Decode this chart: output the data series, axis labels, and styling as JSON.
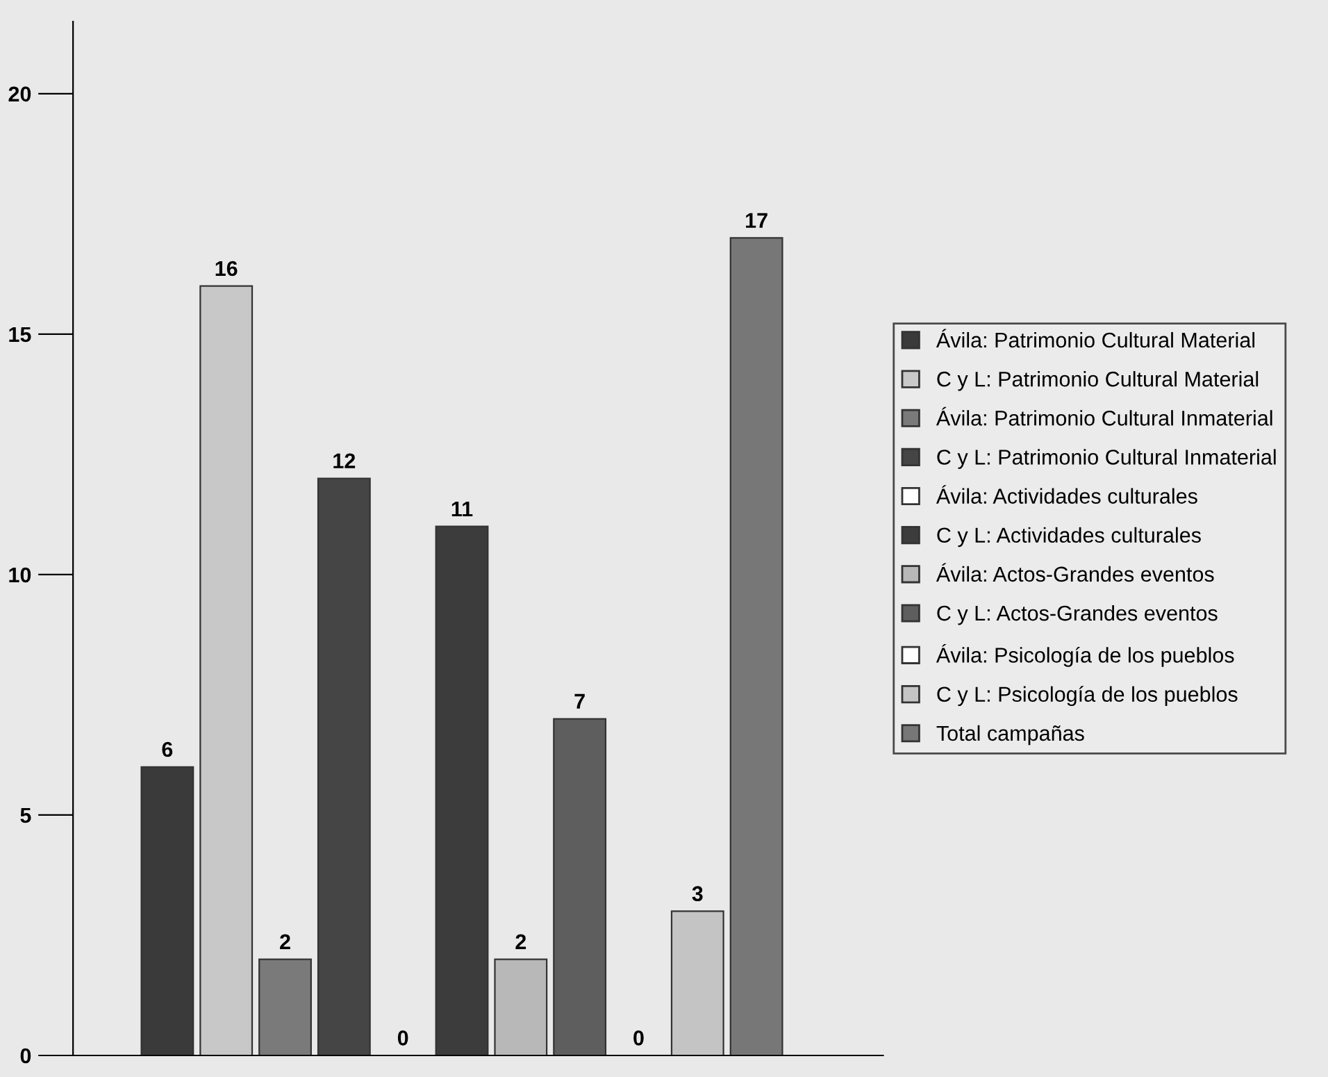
{
  "chart_data": {
    "type": "bar",
    "categories": [
      null
    ],
    "ylim": [
      0,
      21.5
    ],
    "yticks": [
      0,
      5,
      10,
      15,
      20
    ],
    "grid": false,
    "legend": "right",
    "data_labels": true,
    "series": [
      {
        "name": "Ávila: Patrimonio Cultural Material",
        "color": "#3a3a3a",
        "values": [
          6
        ]
      },
      {
        "name": "C y L: Patrimonio Cultural Material",
        "color": "#c8c8c8",
        "values": [
          16
        ]
      },
      {
        "name": "Ávila: Patrimonio Cultural Inmaterial",
        "color": "#7a7a7a",
        "values": [
          2
        ]
      },
      {
        "name": "C y L: Patrimonio Cultural Inmaterial",
        "color": "#454545",
        "values": [
          12
        ]
      },
      {
        "name": "Ávila: Actividades culturales",
        "color": "#ffffff",
        "values": [
          0
        ]
      },
      {
        "name": "C y L: Actividades culturales",
        "color": "#3c3c3c",
        "values": [
          11
        ]
      },
      {
        "name": "Ávila: Actos-Grandes eventos",
        "color": "#b8b8b8",
        "values": [
          2
        ]
      },
      {
        "name": "C y L: Actos-Grandes eventos",
        "color": "#5e5e5e",
        "values": [
          7
        ]
      },
      {
        "name": "Ávila: Psicología de los pueblos",
        "color": "#ffffff",
        "values": [
          0
        ]
      },
      {
        "name": "C y L: Psicología de los pueblos",
        "color": "#c4c4c4",
        "values": [
          3
        ]
      },
      {
        "name": "Total campañas",
        "color": "#777777",
        "values": [
          17
        ]
      }
    ]
  }
}
